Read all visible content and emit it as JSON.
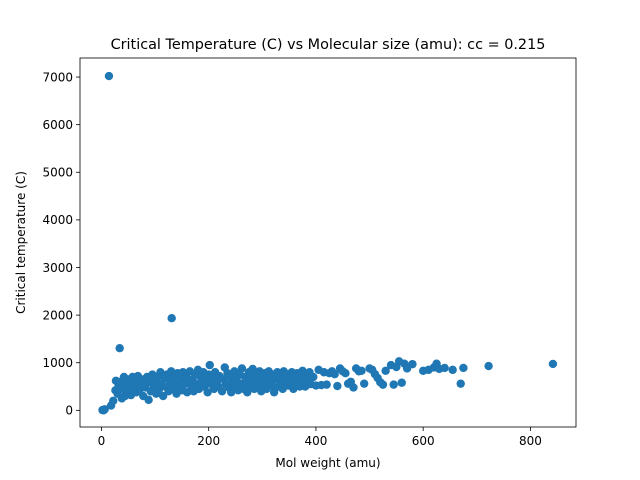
{
  "chart_data": {
    "type": "scatter",
    "title": "Critical Temperature (C) vs Molecular size (amu): cc = 0.215",
    "xlabel": "Mol weight (amu)",
    "ylabel": "Critical temperature (C)",
    "xlim": [
      -40,
      885
    ],
    "ylim": [
      -350,
      7400
    ],
    "x_ticks": [
      0,
      200,
      400,
      600,
      800
    ],
    "y_ticks": [
      0,
      1000,
      2000,
      3000,
      4000,
      5000,
      6000,
      7000
    ],
    "grid": false,
    "legend": "none",
    "color": "#1f77b4",
    "points": [
      [
        2,
        5
      ],
      [
        4,
        0
      ],
      [
        6,
        20
      ],
      [
        14,
        7020
      ],
      [
        131,
        1935
      ],
      [
        34,
        1305
      ],
      [
        18,
        100
      ],
      [
        22,
        200
      ],
      [
        26,
        420
      ],
      [
        27,
        620
      ],
      [
        30,
        350
      ],
      [
        32,
        520
      ],
      [
        35,
        600
      ],
      [
        38,
        250
      ],
      [
        40,
        450
      ],
      [
        42,
        700
      ],
      [
        44,
        300
      ],
      [
        46,
        550
      ],
      [
        48,
        400
      ],
      [
        50,
        650
      ],
      [
        52,
        500
      ],
      [
        55,
        320
      ],
      [
        58,
        700
      ],
      [
        60,
        450
      ],
      [
        62,
        600
      ],
      [
        65,
        380
      ],
      [
        68,
        720
      ],
      [
        70,
        550
      ],
      [
        72,
        450
      ],
      [
        75,
        650
      ],
      [
        78,
        300
      ],
      [
        80,
        580
      ],
      [
        82,
        480
      ],
      [
        85,
        700
      ],
      [
        88,
        220
      ],
      [
        90,
        600
      ],
      [
        92,
        400
      ],
      [
        95,
        750
      ],
      [
        98,
        500
      ],
      [
        100,
        620
      ],
      [
        102,
        350
      ],
      [
        105,
        700
      ],
      [
        108,
        450
      ],
      [
        110,
        800
      ],
      [
        112,
        550
      ],
      [
        115,
        300
      ],
      [
        118,
        680
      ],
      [
        120,
        500
      ],
      [
        122,
        750
      ],
      [
        125,
        400
      ],
      [
        128,
        600
      ],
      [
        130,
        820
      ],
      [
        133,
        450
      ],
      [
        135,
        700
      ],
      [
        138,
        550
      ],
      [
        140,
        350
      ],
      [
        142,
        780
      ],
      [
        145,
        500
      ],
      [
        148,
        650
      ],
      [
        150,
        420
      ],
      [
        152,
        800
      ],
      [
        155,
        550
      ],
      [
        158,
        700
      ],
      [
        160,
        380
      ],
      [
        162,
        600
      ],
      [
        165,
        820
      ],
      [
        168,
        500
      ],
      [
        170,
        650
      ],
      [
        172,
        400
      ],
      [
        175,
        750
      ],
      [
        178,
        550
      ],
      [
        180,
        850
      ],
      [
        182,
        450
      ],
      [
        185,
        700
      ],
      [
        188,
        600
      ],
      [
        190,
        800
      ],
      [
        192,
        500
      ],
      [
        195,
        650
      ],
      [
        198,
        380
      ],
      [
        200,
        750
      ],
      [
        202,
        950
      ],
      [
        205,
        550
      ],
      [
        208,
        700
      ],
      [
        210,
        450
      ],
      [
        212,
        800
      ],
      [
        215,
        600
      ],
      [
        218,
        500
      ],
      [
        220,
        720
      ],
      [
        225,
        400
      ],
      [
        228,
        650
      ],
      [
        230,
        900
      ],
      [
        232,
        550
      ],
      [
        235,
        780
      ],
      [
        238,
        480
      ],
      [
        240,
        700
      ],
      [
        242,
        380
      ],
      [
        245,
        600
      ],
      [
        248,
        820
      ],
      [
        250,
        500
      ],
      [
        252,
        680
      ],
      [
        255,
        420
      ],
      [
        258,
        750
      ],
      [
        260,
        560
      ],
      [
        262,
        880
      ],
      [
        265,
        450
      ],
      [
        268,
        700
      ],
      [
        270,
        600
      ],
      [
        272,
        380
      ],
      [
        275,
        800
      ],
      [
        278,
        520
      ],
      [
        280,
        690
      ],
      [
        282,
        870
      ],
      [
        285,
        450
      ],
      [
        288,
        620
      ],
      [
        290,
        750
      ],
      [
        292,
        500
      ],
      [
        295,
        820
      ],
      [
        298,
        400
      ],
      [
        300,
        680
      ],
      [
        302,
        560
      ],
      [
        305,
        780
      ],
      [
        308,
        450
      ],
      [
        310,
        700
      ],
      [
        312,
        820
      ],
      [
        315,
        600
      ],
      [
        318,
        520
      ],
      [
        320,
        750
      ],
      [
        322,
        380
      ],
      [
        325,
        660
      ],
      [
        328,
        800
      ],
      [
        330,
        500
      ],
      [
        332,
        700
      ],
      [
        335,
        580
      ],
      [
        338,
        450
      ],
      [
        340,
        820
      ],
      [
        342,
        650
      ],
      [
        345,
        760
      ],
      [
        348,
        520
      ],
      [
        350,
        700
      ],
      [
        352,
        580
      ],
      [
        355,
        800
      ],
      [
        358,
        450
      ],
      [
        360,
        680
      ],
      [
        362,
        560
      ],
      [
        365,
        780
      ],
      [
        368,
        620
      ],
      [
        370,
        500
      ],
      [
        372,
        740
      ],
      [
        375,
        830
      ],
      [
        378,
        600
      ],
      [
        380,
        500
      ],
      [
        382,
        720
      ],
      [
        385,
        650
      ],
      [
        388,
        800
      ],
      [
        390,
        550
      ],
      [
        395,
        700
      ],
      [
        400,
        520
      ],
      [
        405,
        850
      ],
      [
        410,
        530
      ],
      [
        415,
        800
      ],
      [
        420,
        540
      ],
      [
        425,
        780
      ],
      [
        430,
        820
      ],
      [
        435,
        760
      ],
      [
        440,
        510
      ],
      [
        445,
        880
      ],
      [
        450,
        820
      ],
      [
        455,
        780
      ],
      [
        460,
        560
      ],
      [
        465,
        600
      ],
      [
        470,
        480
      ],
      [
        475,
        880
      ],
      [
        480,
        820
      ],
      [
        485,
        830
      ],
      [
        490,
        560
      ],
      [
        500,
        880
      ],
      [
        505,
        850
      ],
      [
        510,
        760
      ],
      [
        515,
        680
      ],
      [
        520,
        590
      ],
      [
        525,
        540
      ],
      [
        530,
        830
      ],
      [
        540,
        950
      ],
      [
        545,
        540
      ],
      [
        550,
        910
      ],
      [
        555,
        1030
      ],
      [
        560,
        580
      ],
      [
        565,
        980
      ],
      [
        570,
        880
      ],
      [
        580,
        970
      ],
      [
        600,
        830
      ],
      [
        610,
        850
      ],
      [
        620,
        900
      ],
      [
        625,
        980
      ],
      [
        630,
        870
      ],
      [
        640,
        890
      ],
      [
        655,
        850
      ],
      [
        670,
        560
      ],
      [
        675,
        890
      ],
      [
        722,
        930
      ],
      [
        842,
        975
      ]
    ]
  }
}
